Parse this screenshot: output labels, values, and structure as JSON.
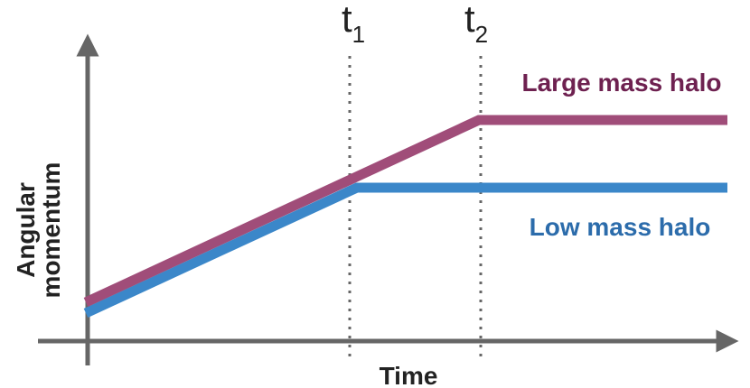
{
  "axes": {
    "y_label": [
      "Angular",
      "momentum"
    ],
    "x_label": "Time"
  },
  "markers": [
    {
      "text": "t",
      "subscript": "1"
    },
    {
      "text": "t",
      "subscript": "2"
    }
  ],
  "curves": [
    {
      "label": "Large mass halo"
    },
    {
      "label": "Low mass halo"
    }
  ]
}
